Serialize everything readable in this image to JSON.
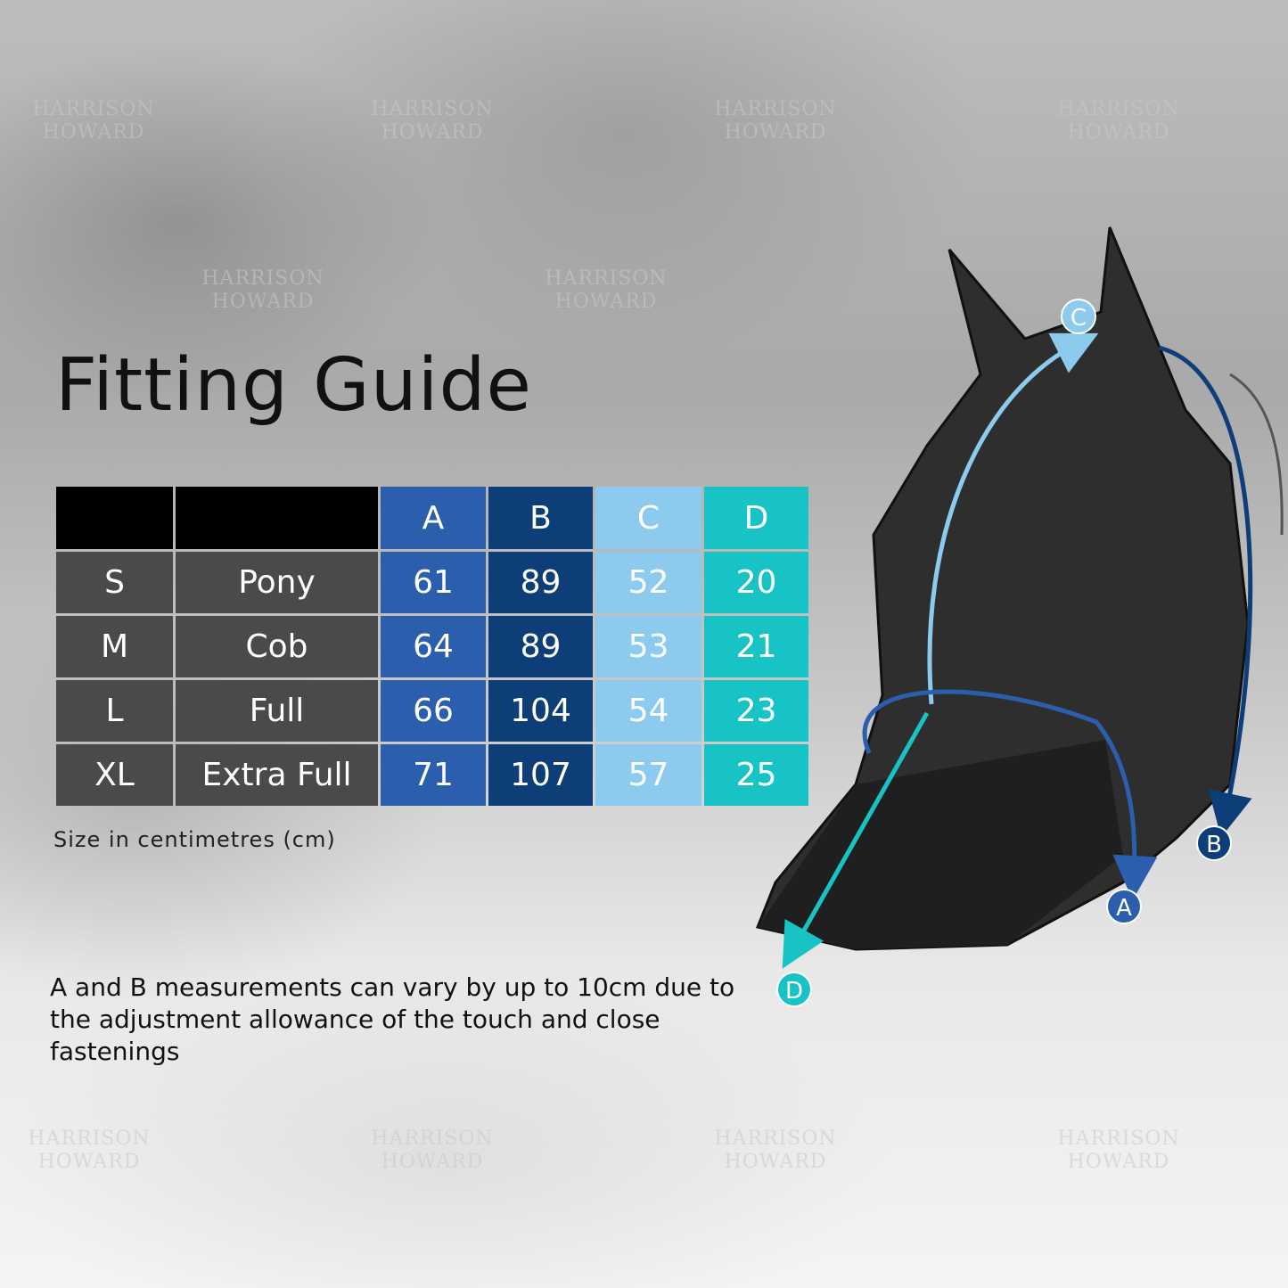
{
  "title": "Fitting Guide",
  "table": {
    "headers": [
      "",
      "",
      "A",
      "B",
      "C",
      "D"
    ],
    "column_colors": {
      "A": "#2b5fae",
      "B": "#0d3e78",
      "C": "#8ccbee",
      "D": "#17c3c5"
    },
    "rows": [
      {
        "size": "S",
        "name": "Pony",
        "A": "61",
        "B": "89",
        "C": "52",
        "D": "20"
      },
      {
        "size": "M",
        "name": "Cob",
        "A": "64",
        "B": "89",
        "C": "53",
        "D": "21"
      },
      {
        "size": "L",
        "name": "Full",
        "A": "66",
        "B": "104",
        "C": "54",
        "D": "23"
      },
      {
        "size": "XL",
        "name": "Extra Full",
        "A": "71",
        "B": "107",
        "C": "57",
        "D": "25"
      }
    ]
  },
  "unit_note": "Size in centimetres (cm)",
  "disclaimer": "A and B measurements can vary by up to 10cm due to the adjustment allowance of the touch and close fastenings",
  "markers": {
    "A": "A",
    "B": "B",
    "C": "C",
    "D": "D"
  },
  "watermark": "HARRISON HOWARD"
}
